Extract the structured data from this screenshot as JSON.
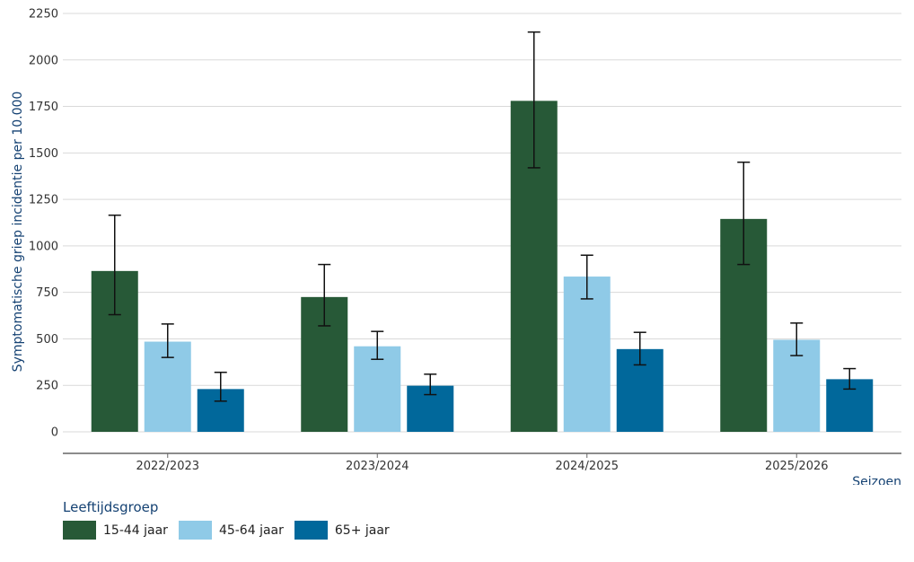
{
  "chart_data": {
    "type": "bar",
    "title": "",
    "xlabel": "Seizoen",
    "ylabel": "Symptomatische griep incidentie per 10.000",
    "ylim": [
      0,
      2250
    ],
    "yticks": [
      0,
      250,
      500,
      750,
      1000,
      1250,
      1500,
      1750,
      2000,
      2250
    ],
    "ytick_labels": [
      "0",
      "250",
      "500",
      "750",
      "1000",
      "1250",
      "1500",
      "1750",
      "2000",
      "2250"
    ],
    "grid": true,
    "legend_title": "Leeftijdsgroep",
    "legend_position": "bottom-left",
    "categories": [
      "2022/2023",
      "2023/2024",
      "2024/2025",
      "2025/2026"
    ],
    "series": [
      {
        "name": "15-44 jaar",
        "color": "#275937",
        "values": [
          865,
          725,
          1780,
          1145
        ],
        "error_low": [
          630,
          570,
          1420,
          900
        ],
        "error_high": [
          1165,
          900,
          2150,
          1450
        ]
      },
      {
        "name": "45-64 jaar",
        "color": "#8fcae7",
        "values": [
          485,
          460,
          835,
          495
        ],
        "error_low": [
          400,
          390,
          715,
          410
        ],
        "error_high": [
          580,
          540,
          950,
          585
        ]
      },
      {
        "name": "65+ jaar",
        "color": "#01689b",
        "values": [
          230,
          248,
          445,
          283
        ],
        "error_low": [
          165,
          200,
          360,
          230
        ],
        "error_high": [
          320,
          310,
          535,
          340
        ]
      }
    ]
  }
}
